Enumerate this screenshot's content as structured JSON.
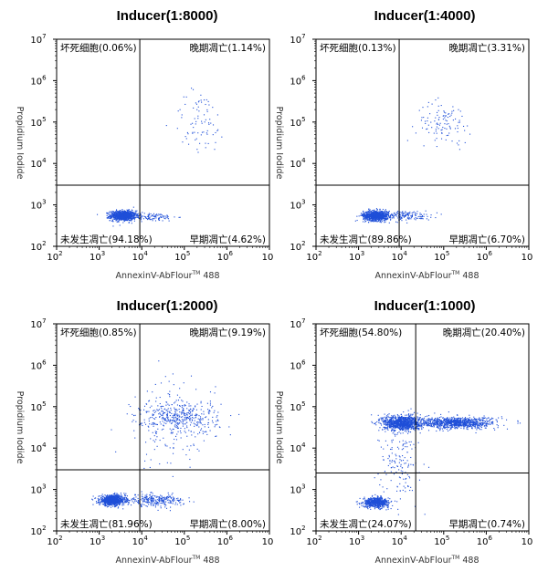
{
  "chart_data": [
    {
      "type": "scatter",
      "title": "Inducer(1:8000)",
      "xlabel": "AnnexinV-AbFlour",
      "xlabel_sup": "TM",
      "xlabel_suffix": " 488",
      "ylabel": "Propidium Iodide",
      "x_scale": "log",
      "y_scale": "log",
      "xlim": [
        100,
        10000000
      ],
      "ylim": [
        100,
        10000000
      ],
      "x_ticks": [
        "10",
        "10",
        "10",
        "10",
        "10",
        "10"
      ],
      "x_tick_exp": [
        "2",
        "3",
        "4",
        "5",
        "6",
        ""
      ],
      "y_ticks": [
        "10",
        "10",
        "10",
        "10",
        "10",
        "10"
      ],
      "y_tick_exp": [
        "2",
        "3",
        "4",
        "5",
        "6",
        "7"
      ],
      "gate_x": 9000,
      "gate_y": 3000,
      "quadrants": {
        "top_left": "坏死细胞(0.06%)",
        "top_right": "晚期凋亡(1.14%)",
        "bottom_left": "未发生凋亡(94.18%)",
        "bottom_right": "早期凋亡(4.62%)"
      },
      "clusters": [
        {
          "cx": 3.55,
          "cy": 2.75,
          "sx": 0.15,
          "sy": 0.06,
          "n": 900
        },
        {
          "cx": 4.2,
          "cy": 2.72,
          "sx": 0.3,
          "sy": 0.05,
          "n": 120
        },
        {
          "cx": 5.35,
          "cy": 5.0,
          "sx": 0.32,
          "sy": 0.4,
          "n": 80
        }
      ],
      "color": "#1f4fd8"
    },
    {
      "type": "scatter",
      "title": "Inducer(1:4000)",
      "xlabel": "AnnexinV-AbFlour",
      "xlabel_sup": "TM",
      "xlabel_suffix": " 488",
      "ylabel": "Propidium Iodide",
      "x_scale": "log",
      "y_scale": "log",
      "xlim": [
        100,
        10000000
      ],
      "ylim": [
        100,
        10000000
      ],
      "x_ticks": [
        "10",
        "10",
        "10",
        "10",
        "10",
        "10"
      ],
      "x_tick_exp": [
        "2",
        "3",
        "4",
        "5",
        "6",
        ""
      ],
      "y_ticks": [
        "10",
        "10",
        "10",
        "10",
        "10",
        "10"
      ],
      "y_tick_exp": [
        "2",
        "3",
        "4",
        "5",
        "6",
        "7"
      ],
      "gate_x": 9000,
      "gate_y": 3000,
      "quadrants": {
        "top_left": "坏死细胞(0.13%)",
        "top_right": "晚期凋亡(3.31%)",
        "bottom_left": "未发生凋亡(89.86%)",
        "bottom_right": "早期凋亡(6.70%)"
      },
      "clusters": [
        {
          "cx": 3.4,
          "cy": 2.75,
          "sx": 0.15,
          "sy": 0.06,
          "n": 850
        },
        {
          "cx": 4.1,
          "cy": 2.75,
          "sx": 0.3,
          "sy": 0.06,
          "n": 150
        },
        {
          "cx": 5.0,
          "cy": 5.0,
          "sx": 0.32,
          "sy": 0.25,
          "n": 110
        }
      ],
      "color": "#1f4fd8"
    },
    {
      "type": "scatter",
      "title": "Inducer(1:2000)",
      "xlabel": "AnnexinV-AbFlour",
      "xlabel_sup": "TM",
      "xlabel_suffix": " 488",
      "ylabel": "Propidium Iodide",
      "x_scale": "log",
      "y_scale": "log",
      "xlim": [
        100,
        10000000
      ],
      "ylim": [
        100,
        10000000
      ],
      "x_ticks": [
        "10",
        "10",
        "10",
        "10",
        "10",
        "10"
      ],
      "x_tick_exp": [
        "2",
        "3",
        "4",
        "5",
        "6",
        ""
      ],
      "y_ticks": [
        "10",
        "10",
        "10",
        "10",
        "10",
        "10"
      ],
      "y_tick_exp": [
        "2",
        "3",
        "4",
        "5",
        "6",
        "7"
      ],
      "gate_x": 9000,
      "gate_y": 3000,
      "quadrants": {
        "top_left": "坏死细胞(0.85%)",
        "top_right": "晚期凋亡(9.19%)",
        "bottom_left": "未发生凋亡(81.96%)",
        "bottom_right": "早期凋亡(8.00%)"
      },
      "clusters": [
        {
          "cx": 3.3,
          "cy": 2.75,
          "sx": 0.15,
          "sy": 0.06,
          "n": 850
        },
        {
          "cx": 4.3,
          "cy": 2.75,
          "sx": 0.35,
          "sy": 0.07,
          "n": 280
        },
        {
          "cx": 4.9,
          "cy": 4.75,
          "sx": 0.45,
          "sy": 0.2,
          "n": 380
        },
        {
          "cx": 4.7,
          "cy": 4.6,
          "sx": 0.5,
          "sy": 0.55,
          "n": 140
        }
      ],
      "color": "#1f4fd8"
    },
    {
      "type": "scatter",
      "title": "Inducer(1:1000)",
      "xlabel": "AnnexinV-AbFlour",
      "xlabel_sup": "TM",
      "xlabel_suffix": " 488",
      "ylabel": "Propidium Iodide",
      "x_scale": "log",
      "y_scale": "log",
      "xlim": [
        100,
        10000000
      ],
      "ylim": [
        100,
        10000000
      ],
      "x_ticks": [
        "10",
        "10",
        "10",
        "10",
        "10",
        "10"
      ],
      "x_tick_exp": [
        "2",
        "3",
        "4",
        "5",
        "6",
        ""
      ],
      "y_ticks": [
        "10",
        "10",
        "10",
        "10",
        "10",
        "10"
      ],
      "y_tick_exp": [
        "2",
        "3",
        "4",
        "5",
        "6",
        "7"
      ],
      "gate_x": 22000,
      "gate_y": 2500,
      "quadrants": {
        "top_left": "坏死细胞(54.80%)",
        "top_right": "晚期凋亡(20.40%)",
        "bottom_left": "未发生凋亡(24.07%)",
        "bottom_right": "早期凋亡(0.74%)"
      },
      "clusters": [
        {
          "cx": 3.4,
          "cy": 2.7,
          "sx": 0.15,
          "sy": 0.06,
          "n": 600
        },
        {
          "cx": 4.0,
          "cy": 4.62,
          "sx": 0.22,
          "sy": 0.09,
          "n": 1000
        },
        {
          "cx": 5.3,
          "cy": 4.62,
          "sx": 0.45,
          "sy": 0.07,
          "n": 900
        },
        {
          "cx": 3.95,
          "cy": 3.7,
          "sx": 0.22,
          "sy": 0.45,
          "n": 150
        }
      ],
      "color": "#1f4fd8"
    }
  ]
}
